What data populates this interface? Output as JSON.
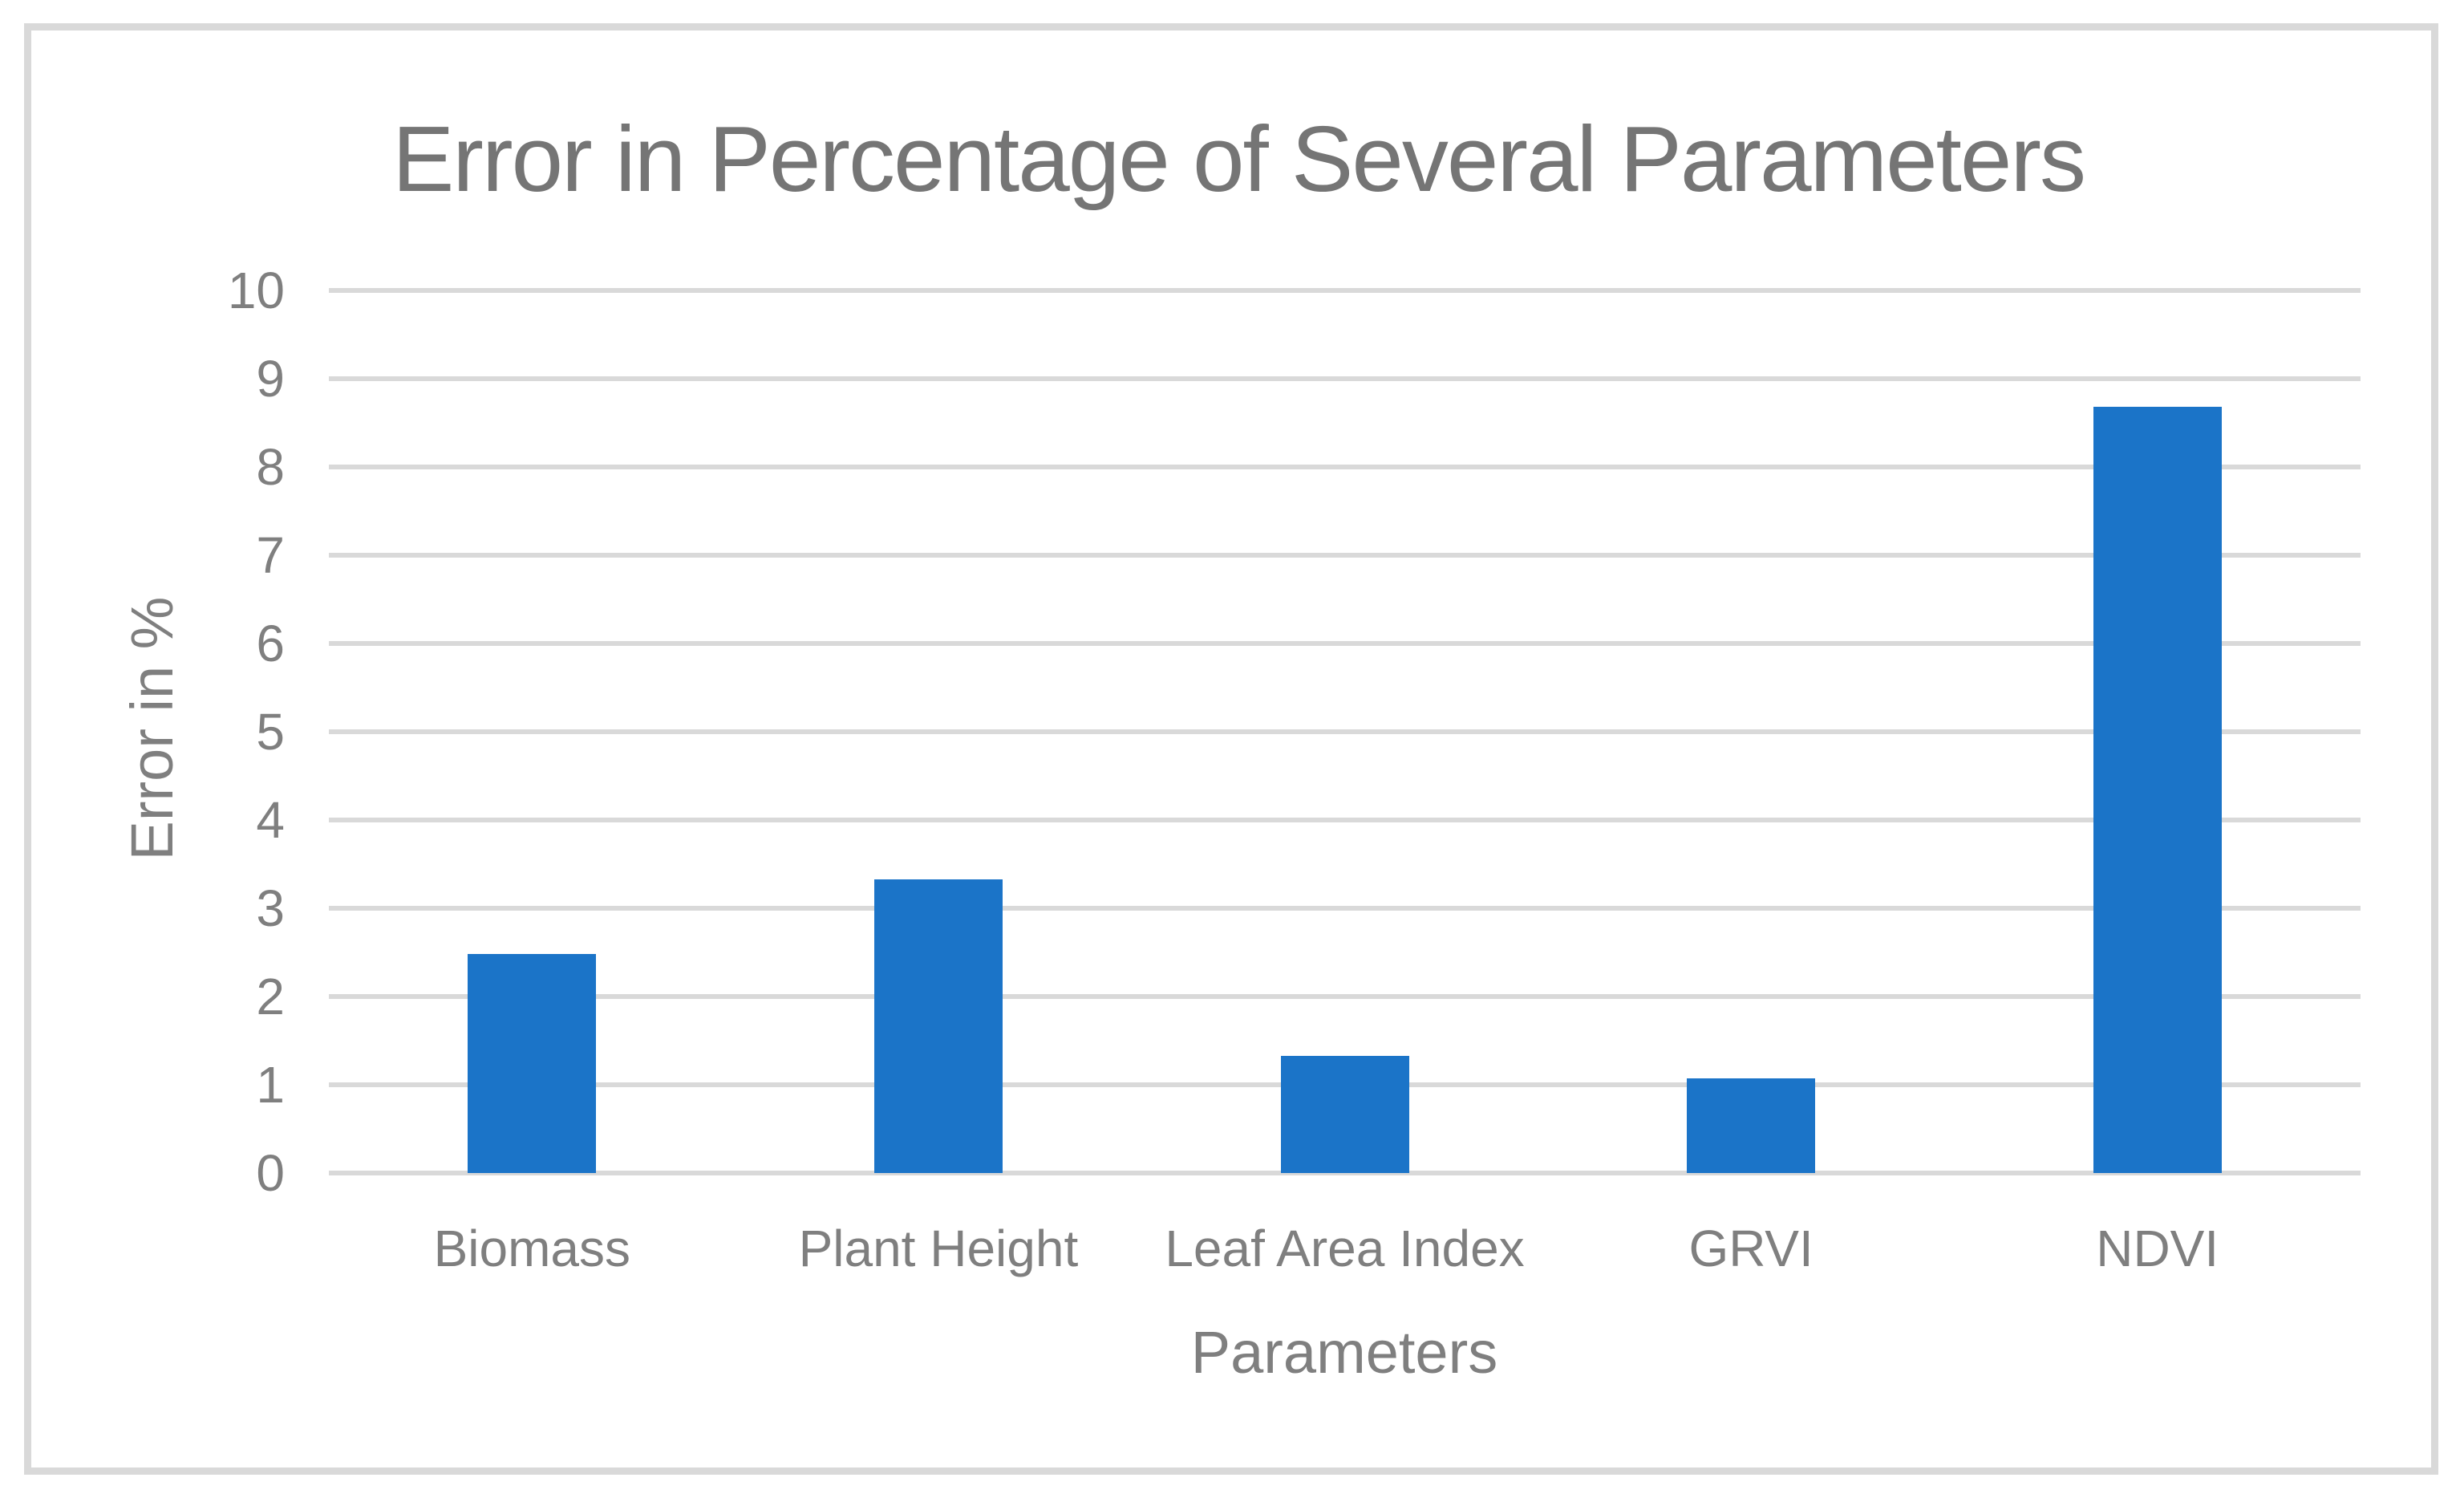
{
  "chart_data": {
    "type": "bar",
    "title": "Error in Percentage of Several Parameters",
    "categories": [
      "Biomass",
      "Plant Height",
      "Leaf Area Index",
      "GRVI",
      "NDVI"
    ],
    "values": [
      2.48,
      3.33,
      1.33,
      1.07,
      8.68
    ],
    "xlabel": "Parameters",
    "ylabel": "Error in %",
    "ylim": [
      0,
      10
    ],
    "yticks": [
      0,
      1,
      2,
      3,
      4,
      5,
      6,
      7,
      8,
      9,
      10
    ],
    "grid": true,
    "legend_position": "none",
    "colors": {
      "bar": "#1B74C8",
      "gridline": "#D9D9D9",
      "axis_text": "#7F7F7F",
      "title_text": "#757575",
      "frame_border": "#D9D9D9",
      "background": "#FFFFFF"
    }
  }
}
